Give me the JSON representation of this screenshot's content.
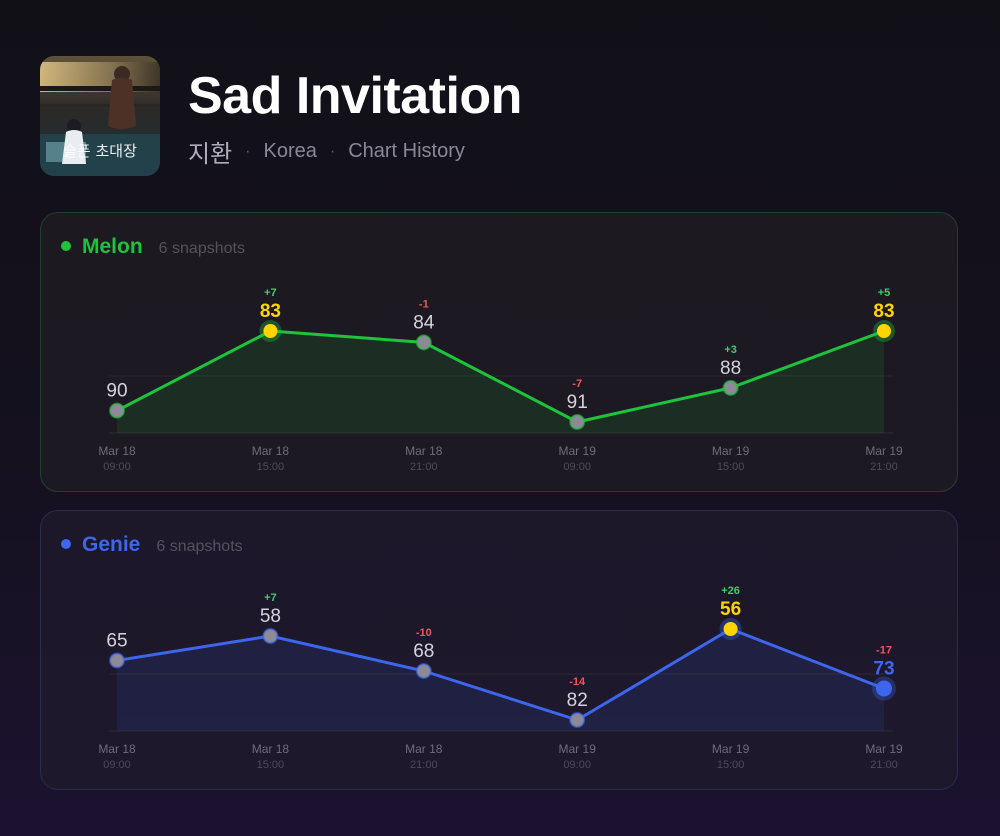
{
  "header": {
    "title": "Sad Invitation",
    "artist": "지환",
    "region": "Korea",
    "section": "Chart History",
    "cover_text": "슬픈 초대장"
  },
  "chart_data": [
    {
      "type": "line",
      "platform": "Melon",
      "snapshots_label": "6 snapshots",
      "accent": "#1ec33c",
      "highlight": "#ffd400",
      "y_axis": "rank (inverted: lower rank plotted higher)",
      "x": [
        {
          "date": "Mar 18",
          "time": "09:00"
        },
        {
          "date": "Mar 18",
          "time": "15:00"
        },
        {
          "date": "Mar 18",
          "time": "21:00"
        },
        {
          "date": "Mar 19",
          "time": "09:00"
        },
        {
          "date": "Mar 19",
          "time": "15:00"
        },
        {
          "date": "Mar 19",
          "time": "21:00"
        }
      ],
      "ranks": [
        90,
        83,
        84,
        91,
        88,
        83
      ],
      "changes": [
        "",
        "+7",
        "-1",
        "-7",
        "+3",
        "+5"
      ],
      "best_indices": [
        1,
        5
      ],
      "latest_index": 5
    },
    {
      "type": "line",
      "platform": "Genie",
      "snapshots_label": "6 snapshots",
      "accent": "#3d66ec",
      "highlight": "#ffd400",
      "y_axis": "rank (inverted: lower rank plotted higher)",
      "x": [
        {
          "date": "Mar 18",
          "time": "09:00"
        },
        {
          "date": "Mar 18",
          "time": "15:00"
        },
        {
          "date": "Mar 18",
          "time": "21:00"
        },
        {
          "date": "Mar 19",
          "time": "09:00"
        },
        {
          "date": "Mar 19",
          "time": "15:00"
        },
        {
          "date": "Mar 19",
          "time": "21:00"
        }
      ],
      "ranks": [
        65,
        58,
        68,
        82,
        56,
        73
      ],
      "changes": [
        "",
        "+7",
        "-10",
        "-14",
        "+26",
        "-17"
      ],
      "best_indices": [
        4
      ],
      "latest_index": 5
    }
  ]
}
